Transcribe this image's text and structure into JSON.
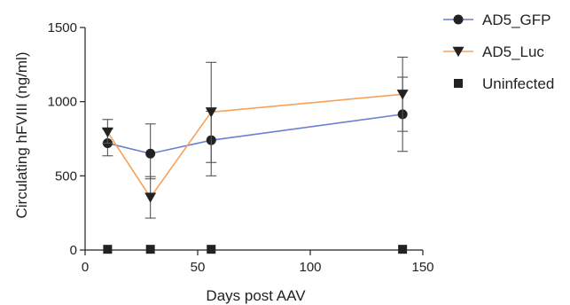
{
  "chart_data": {
    "type": "line",
    "xlabel": "Days post AAV",
    "ylabel": "Circulating hFVIII (ng/ml)",
    "xlim": [
      0,
      150
    ],
    "ylim": [
      0,
      1500
    ],
    "xticks": [
      0,
      50,
      100,
      150
    ],
    "yticks": [
      0,
      500,
      1000,
      1500
    ],
    "grid": false,
    "legend_position": "right",
    "series": [
      {
        "name": "AD5_GFP",
        "marker": "circle",
        "color": "#6a7fcf",
        "x": [
          10,
          29,
          56,
          141
        ],
        "y": [
          720,
          650,
          740,
          915
        ],
        "err_low": [
          635,
          480,
          590,
          665
        ],
        "err_high": [
          815,
          850,
          935,
          1165
        ]
      },
      {
        "name": "AD5_Luc",
        "marker": "triangle-down",
        "color": "#f7a25a",
        "x": [
          10,
          29,
          56,
          141
        ],
        "y": [
          795,
          355,
          930,
          1050
        ],
        "err_low": [
          720,
          215,
          500,
          800
        ],
        "err_high": [
          880,
          495,
          1265,
          1300
        ]
      },
      {
        "name": "Uninfected",
        "marker": "square",
        "color": "#555555",
        "x": [
          10,
          29,
          56,
          141
        ],
        "y": [
          5,
          5,
          5,
          5
        ],
        "err_low": [
          5,
          5,
          5,
          5
        ],
        "err_high": [
          5,
          5,
          5,
          5
        ]
      }
    ]
  }
}
